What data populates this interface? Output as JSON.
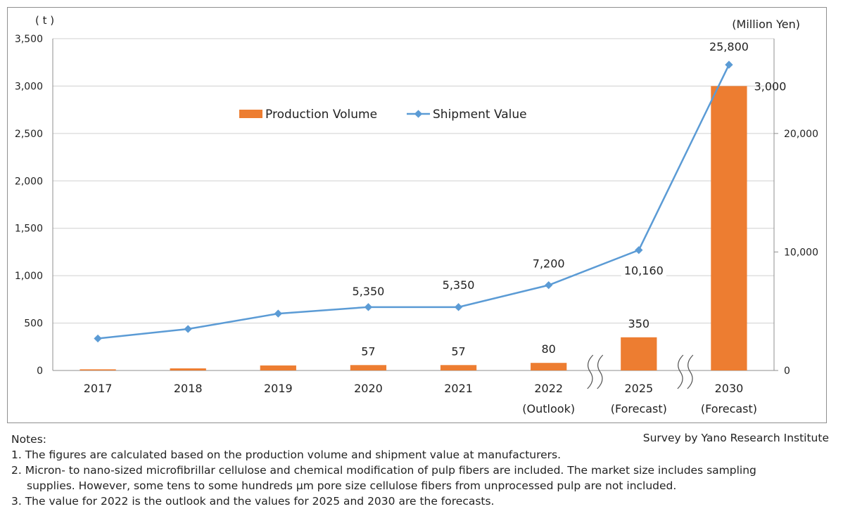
{
  "chart_data": {
    "type": "bar+line",
    "categories": [
      "2017",
      "2018",
      "2019",
      "2020",
      "2021",
      "2022",
      "2025",
      "2030"
    ],
    "category_sublabels": [
      "",
      "",
      "",
      "",
      "",
      "(Outlook)",
      "(Forecast)",
      "(Forecast)"
    ],
    "series": [
      {
        "name": "Production Volume",
        "type": "bar",
        "axis": "left",
        "color": "#ED7D31",
        "values": [
          12,
          22,
          53,
          57,
          57,
          80,
          350,
          3000
        ],
        "data_labels": [
          "",
          "",
          "",
          "57",
          "57",
          "80",
          "350",
          "3,000"
        ]
      },
      {
        "name": "Shipment Value",
        "type": "line",
        "axis": "right",
        "color": "#5B9BD5",
        "values": [
          2700,
          3500,
          4800,
          5350,
          5350,
          7200,
          10160,
          25800
        ],
        "data_labels": [
          "",
          "",
          "",
          "5,350",
          "5,350",
          "7,200",
          "10,160",
          "25,800"
        ]
      }
    ],
    "y_left": {
      "unit_label": "( t )",
      "range": [
        0,
        3500
      ],
      "ticks": [
        0,
        500,
        1000,
        1500,
        2000,
        2500,
        3000,
        3500
      ],
      "tick_labels": [
        "0",
        "500",
        "1,000",
        "1,500",
        "2,000",
        "2,500",
        "3,000",
        "3,500"
      ]
    },
    "y_right": {
      "unit_label": "(Million Yen)",
      "range": [
        0,
        28000
      ],
      "ticks": [
        0,
        10000,
        20000
      ],
      "tick_labels": [
        "0",
        "10,000",
        "20,000"
      ]
    },
    "axis_breaks_after": [
      "2022",
      "2025"
    ],
    "grid": true,
    "legend_position": "top-center"
  },
  "notes": {
    "heading": "Notes:",
    "items": [
      "1.  The figures are calculated based on the production volume and shipment value at manufacturers.",
      "2.  Micron- to nano-sized microfibrillar cellulose and chemical modification of pulp fibers are included. The market size includes sampling",
      "supplies. However, some tens to some hundreds μm pore size cellulose fibers from unprocessed pulp are not included.",
      "3.  The value for 2022 is the outlook and the values for 2025 and 2030 are the forecasts."
    ]
  },
  "credit": "Survey by Yano Research Institute"
}
